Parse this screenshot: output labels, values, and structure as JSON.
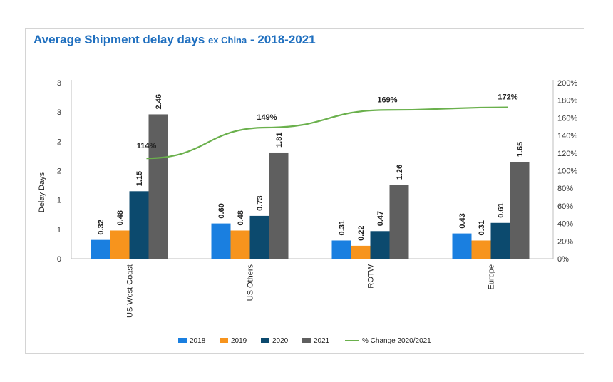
{
  "chart_data": {
    "type": "bar",
    "title": "Average Shipment delay days",
    "title_suffix_small": "ex China",
    "title_suffix_tail": "- 2018-2021",
    "ylabel": "Delay Days",
    "categories": [
      "US West Coast",
      "US Others",
      "ROTW",
      "Europe"
    ],
    "y_tick_labels": [
      "0",
      "1",
      "1",
      "2",
      "2",
      "3",
      "3"
    ],
    "y2_tick_labels": [
      "0%",
      "20%",
      "40%",
      "60%",
      "80%",
      "100%",
      "120%",
      "140%",
      "160%",
      "180%",
      "200%"
    ],
    "ylim": [
      0,
      3
    ],
    "y2lim": [
      0,
      200
    ],
    "series": [
      {
        "name": "2018",
        "color": "#1a7fe0",
        "values": [
          0.32,
          0.6,
          0.31,
          0.43
        ]
      },
      {
        "name": "2019",
        "color": "#f7941d",
        "values": [
          0.48,
          0.48,
          0.22,
          0.31
        ]
      },
      {
        "name": "2020",
        "color": "#0c4a6e",
        "values": [
          1.15,
          0.73,
          0.47,
          0.61
        ]
      },
      {
        "name": "2021",
        "color": "#5f5f5f",
        "values": [
          2.46,
          1.81,
          1.26,
          1.65
        ]
      }
    ],
    "line_series": {
      "name": "% Change 2020/2021",
      "color": "#6ab04c",
      "values": [
        114,
        149,
        169,
        172
      ],
      "labels": [
        "114%",
        "149%",
        "169%",
        "172%"
      ]
    },
    "legend_position": "bottom",
    "grid": false
  }
}
